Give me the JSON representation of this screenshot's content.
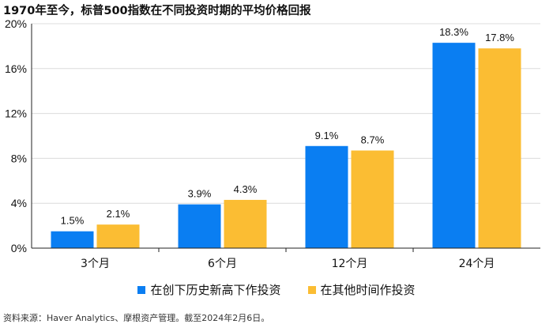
{
  "title": "1970年至今，标普500指数在不同投资时期的平均价格回报",
  "source": "资料来源：Haver Analytics、摩根资产管理。截至2024年2月6日。",
  "colors": {
    "series1": "#0a7ef2",
    "series2": "#fbbd33",
    "grid": "#dcdcdc",
    "axis": "#222222"
  },
  "chart_data": {
    "type": "bar",
    "categories": [
      "3个月",
      "6个月",
      "12个月",
      "24个月"
    ],
    "series": [
      {
        "name": "在创下历史新高下作投资",
        "values": [
          1.5,
          3.9,
          9.1,
          18.3
        ],
        "labels": [
          "1.5%",
          "3.9%",
          "9.1%",
          "18.3%"
        ]
      },
      {
        "name": "在其他时间作投资",
        "values": [
          2.1,
          4.3,
          8.7,
          17.8
        ],
        "labels": [
          "2.1%",
          "4.3%",
          "8.7%",
          "17.8%"
        ]
      }
    ],
    "ylim": [
      0,
      20
    ],
    "yticks": [
      0,
      4,
      8,
      12,
      16,
      20
    ],
    "ytick_labels": [
      "0%",
      "4%",
      "8%",
      "12%",
      "16%",
      "20%"
    ],
    "grid": true,
    "legend": "bottom"
  }
}
